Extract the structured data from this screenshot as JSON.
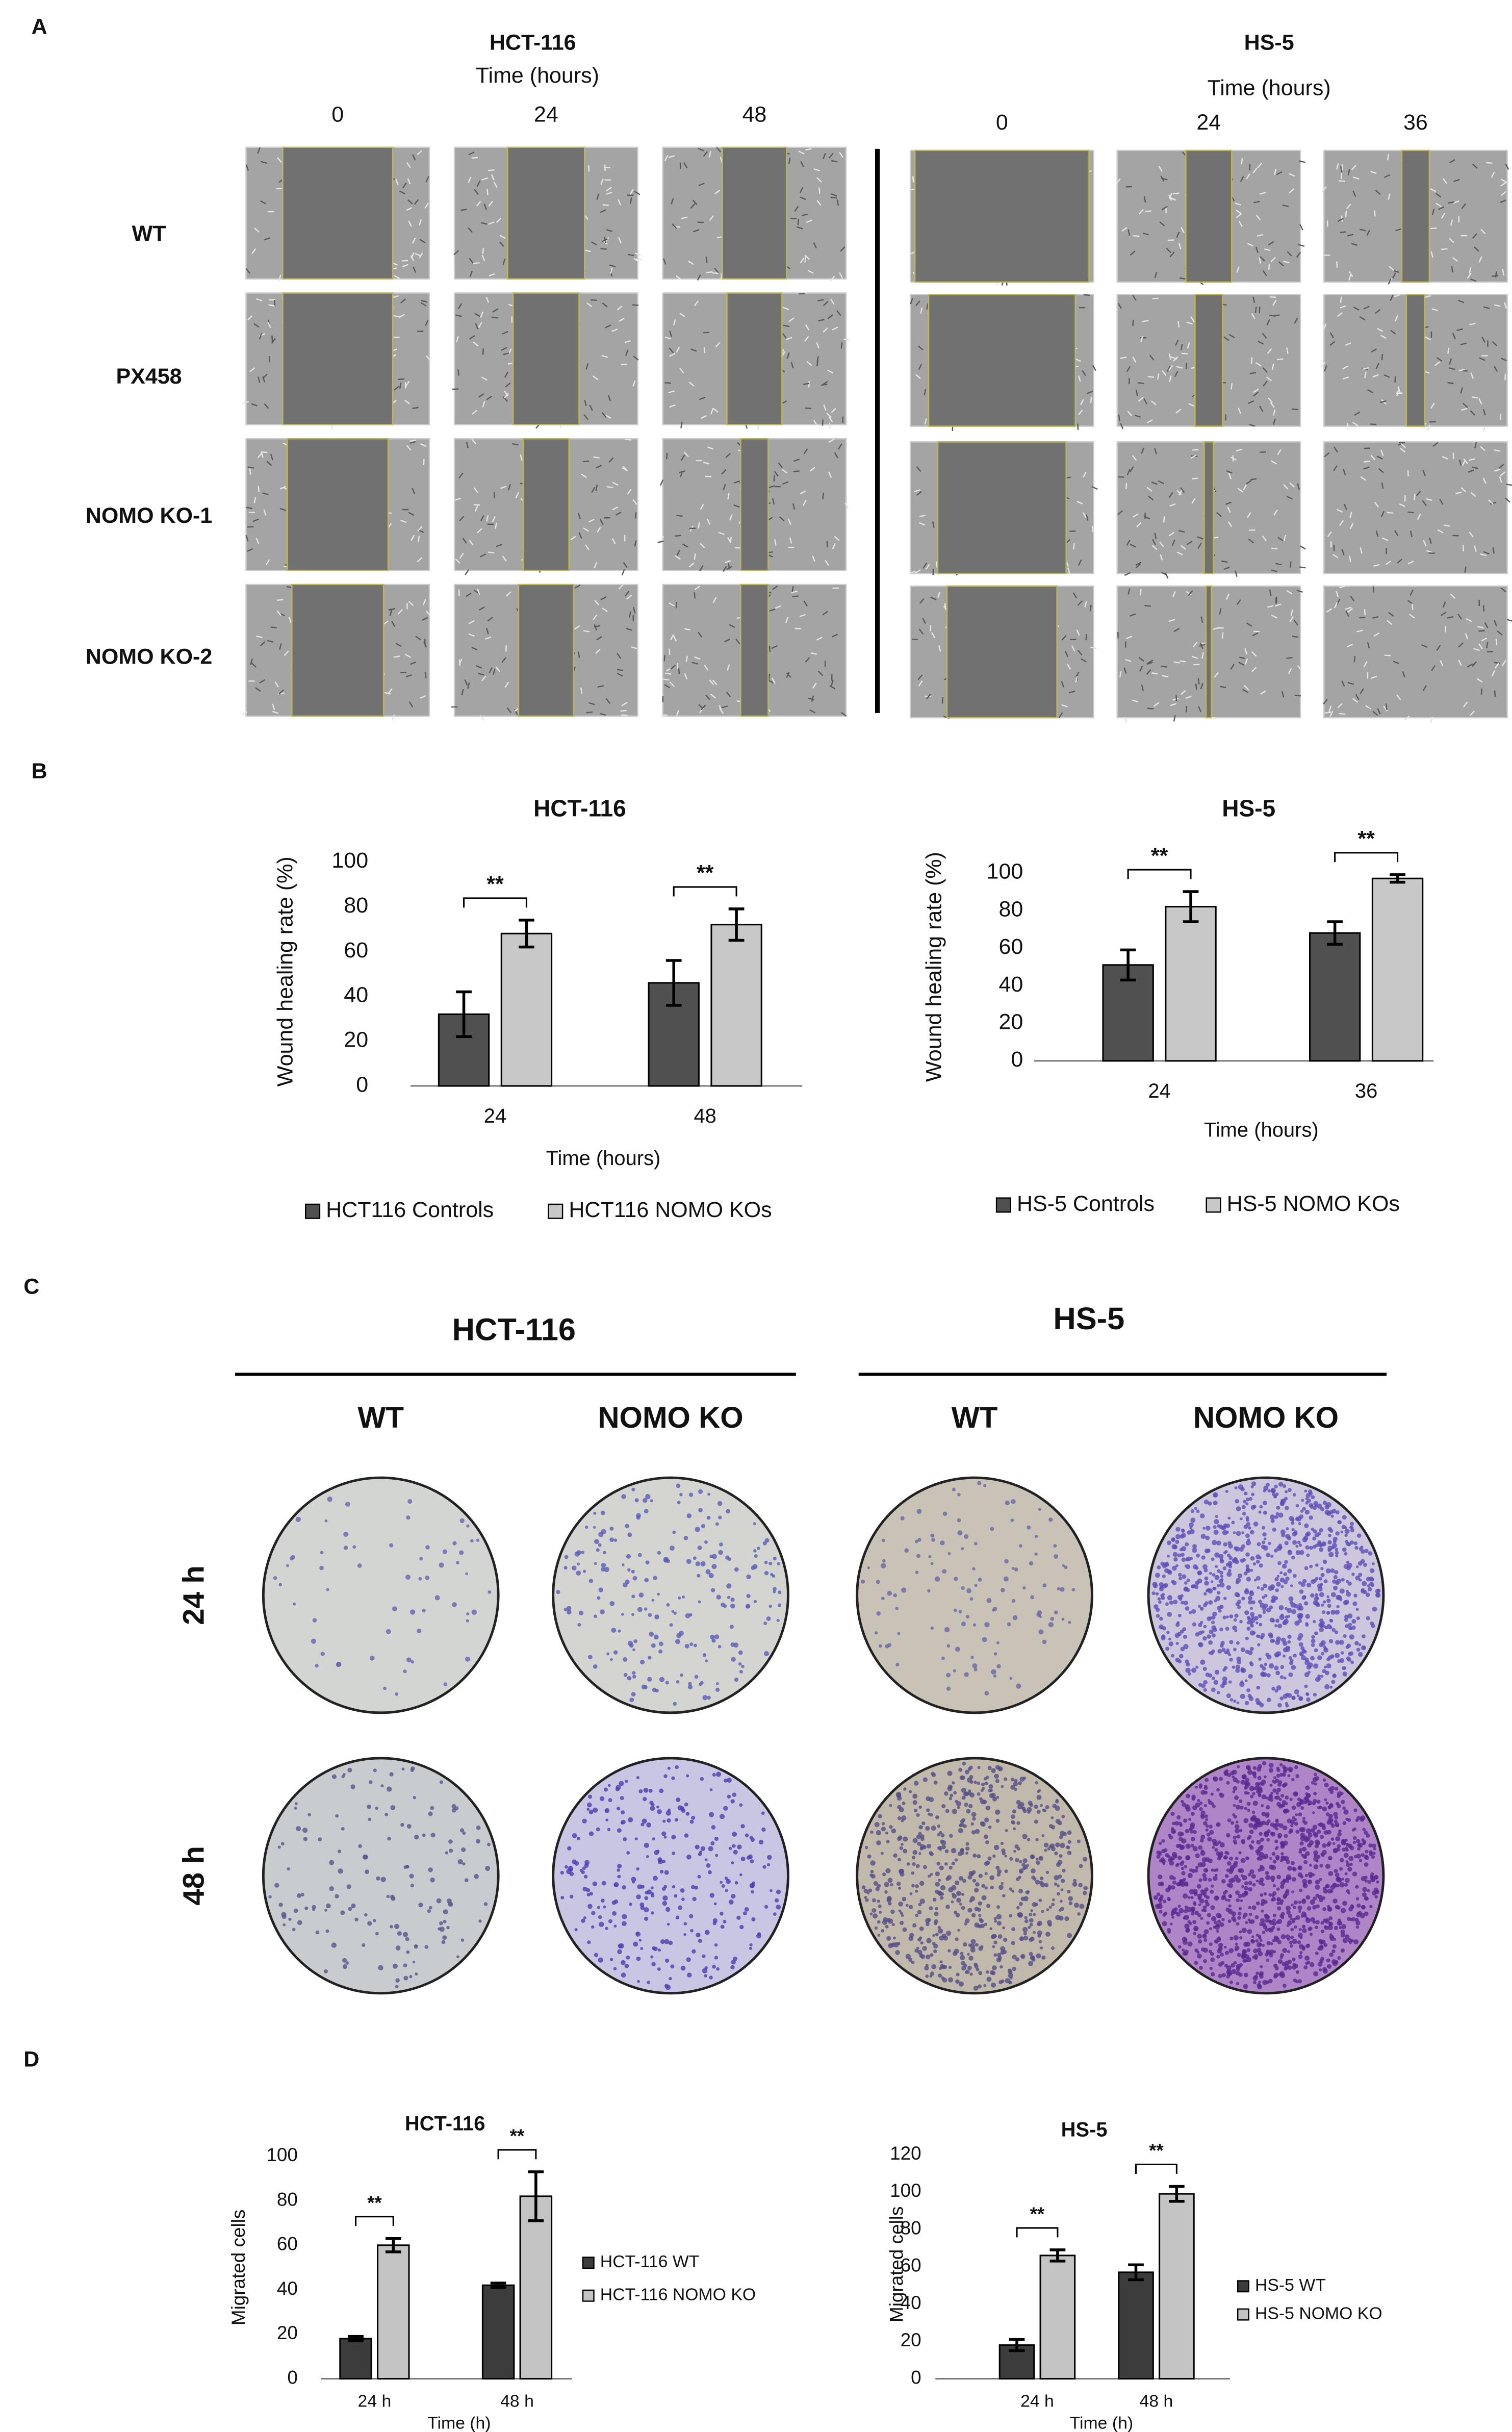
{
  "panel_labels": [
    "A",
    "B",
    "C",
    "D"
  ],
  "panel_a": {
    "groups": [
      {
        "title": "HCT-116",
        "axis_label": "Time (hours)",
        "times": [
          "0",
          "24",
          "48"
        ]
      },
      {
        "title": "HS-5",
        "axis_label": "Time (hours)",
        "times": [
          "0",
          "24",
          "36"
        ]
      }
    ],
    "rows": [
      "WT",
      "PX458",
      "NOMO KO-1",
      "NOMO KO-2"
    ]
  },
  "panel_c": {
    "groups": [
      {
        "title": "HCT-116",
        "columns": [
          "WT",
          "NOMO KO"
        ]
      },
      {
        "title": "HS-5",
        "columns": [
          "WT",
          "NOMO KO"
        ]
      }
    ],
    "rows": [
      "24 h",
      "48 h"
    ]
  },
  "chart_data": [
    {
      "type": "bar",
      "title": "HCT-116",
      "y_label": "Wound healing rate (%)",
      "x_label": "Time (hours)",
      "categories": [
        "24",
        "48"
      ],
      "series": [
        {
          "name": "HCT116 Controls",
          "color": "#505050",
          "values": [
            32,
            46
          ],
          "errors": [
            10,
            10
          ]
        },
        {
          "name": "HCT116 NOMO KOs",
          "color": "#c8c8c8",
          "values": [
            68,
            72
          ],
          "errors": [
            6,
            7
          ]
        }
      ],
      "annotations": [
        "**",
        "**"
      ],
      "ylim": [
        0,
        100
      ],
      "yticks": [
        0,
        20,
        40,
        60,
        80,
        100
      ]
    },
    {
      "type": "bar",
      "title": "HS-5",
      "y_label": "Wound healing rate (%)",
      "x_label": "Time (hours)",
      "categories": [
        "24",
        "36"
      ],
      "series": [
        {
          "name": "HS-5 Controls",
          "color": "#505050",
          "values": [
            51,
            68
          ],
          "errors": [
            8,
            6
          ]
        },
        {
          "name": "HS-5 NOMO KOs",
          "color": "#c8c8c8",
          "values": [
            82,
            97
          ],
          "errors": [
            8,
            2
          ]
        }
      ],
      "annotations": [
        "**",
        "**"
      ],
      "ylim": [
        0,
        100
      ],
      "yticks": [
        0,
        20,
        40,
        60,
        80,
        100
      ]
    },
    {
      "type": "bar",
      "title": "HCT-116",
      "y_label": "Migrated cells",
      "x_label": "Time (h)",
      "categories": [
        "24 h",
        "48 h"
      ],
      "series": [
        {
          "name": "HCT-116 WT",
          "color": "#3c3c3c",
          "values": [
            18,
            42
          ],
          "errors": [
            1,
            1
          ]
        },
        {
          "name": "HCT-116 NOMO KO",
          "color": "#c4c4c4",
          "values": [
            60,
            82
          ],
          "errors": [
            3,
            11
          ]
        }
      ],
      "annotations": [
        "**",
        "**"
      ],
      "ylim": [
        0,
        100
      ],
      "yticks": [
        0,
        20,
        40,
        60,
        80,
        100
      ]
    },
    {
      "type": "bar",
      "title": "HS-5",
      "y_label": "Migrated cells",
      "x_label": "Time (h)",
      "categories": [
        "24 h",
        "48 h"
      ],
      "series": [
        {
          "name": "HS-5 WT",
          "color": "#3c3c3c",
          "values": [
            18,
            57
          ],
          "errors": [
            3,
            4
          ]
        },
        {
          "name": "HS-5 NOMO KO",
          "color": "#c4c4c4",
          "values": [
            66,
            99
          ],
          "errors": [
            3,
            4
          ]
        }
      ],
      "annotations": [
        "**",
        "**"
      ],
      "ylim": [
        0,
        120
      ],
      "yticks": [
        0,
        20,
        40,
        60,
        80,
        100,
        120
      ]
    }
  ]
}
